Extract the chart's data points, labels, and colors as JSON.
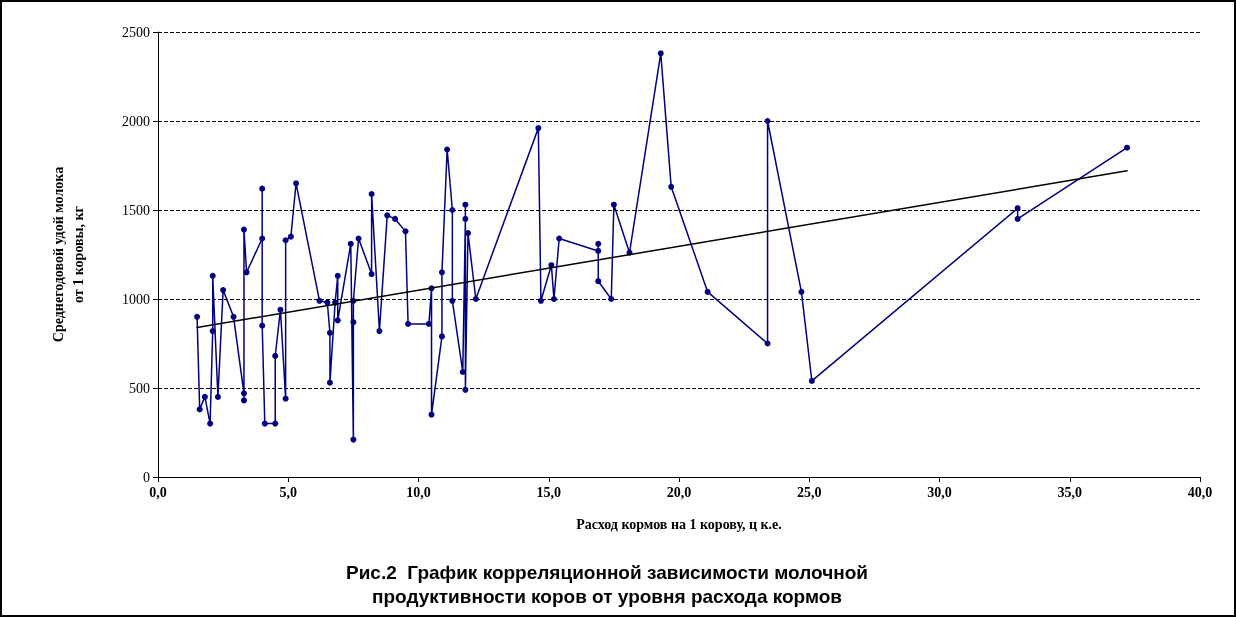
{
  "chart_data": {
    "type": "line",
    "title": "Рис.2  График корреляционной зависимости молочной\nпродуктивности коров от уровня расхода кормов",
    "xlabel": "Расход кормов на 1 корову, ц к.е.",
    "ylabel": "Среднегодовой удой молока\nот 1 коровы, кг",
    "xlim": [
      0,
      40
    ],
    "xticks": [
      {
        "value": 0,
        "label": "0,0"
      },
      {
        "value": 5,
        "label": "5,0"
      },
      {
        "value": 10,
        "label": "10,0"
      },
      {
        "value": 15,
        "label": "15,0"
      },
      {
        "value": 20,
        "label": "20,0"
      },
      {
        "value": 25,
        "label": "25,0"
      },
      {
        "value": 30,
        "label": "30,0"
      },
      {
        "value": 35,
        "label": "35,0"
      },
      {
        "value": 40,
        "label": "40,0"
      }
    ],
    "ylim": [
      0,
      2500
    ],
    "yticks": [
      0,
      500,
      1000,
      1500,
      2000,
      2500
    ],
    "grid": "y",
    "series": [
      {
        "color": "#000080",
        "marker": "circle",
        "x": [
          1.5,
          1.6,
          1.8,
          2.0,
          2.1,
          2.1,
          2.3,
          2.5,
          2.9,
          3.3,
          3.3,
          3.3,
          3.4,
          4.0,
          4.0,
          4.0,
          4.1,
          4.5,
          4.5,
          4.7,
          4.9,
          4.9,
          5.1,
          5.3,
          6.2,
          6.5,
          6.6,
          6.6,
          6.8,
          6.9,
          6.9,
          7.4,
          7.5,
          7.5,
          7.5,
          7.7,
          8.2,
          8.2,
          8.5,
          8.8,
          9.1,
          9.5,
          9.6,
          10.4,
          10.5,
          10.5,
          10.9,
          10.9,
          11.1,
          11.3,
          11.3,
          11.7,
          11.8,
          11.8,
          11.8,
          11.9,
          12.2,
          14.6,
          14.7,
          15.1,
          15.2,
          15.4,
          16.9,
          16.9,
          16.9,
          17.4,
          17.5,
          18.1,
          19.3,
          19.7,
          21.1,
          23.4,
          23.4,
          24.7,
          25.1,
          33.0,
          33.0,
          37.2
        ],
        "values": [
          900,
          380,
          450,
          300,
          820,
          1130,
          450,
          1050,
          900,
          470,
          430,
          1390,
          1150,
          1340,
          1620,
          850,
          300,
          300,
          680,
          940,
          440,
          1330,
          1350,
          1650,
          990,
          980,
          810,
          530,
          980,
          1130,
          880,
          1310,
          210,
          870,
          990,
          1340,
          1140,
          1590,
          820,
          1470,
          1450,
          1380,
          860,
          860,
          1060,
          350,
          790,
          1150,
          1840,
          1500,
          990,
          590,
          1450,
          1530,
          490,
          1370,
          1000,
          1960,
          990,
          1190,
          1000,
          1340,
          1270,
          1310,
          1100,
          1000,
          1530,
          1260,
          2380,
          1630,
          1040,
          750,
          2000,
          1040,
          540,
          1510,
          1450,
          1850
        ]
      },
      {
        "color": "#000000",
        "marker": "none",
        "x": [
          1.5,
          37.2
        ],
        "values": [
          840,
          1720
        ]
      }
    ]
  }
}
